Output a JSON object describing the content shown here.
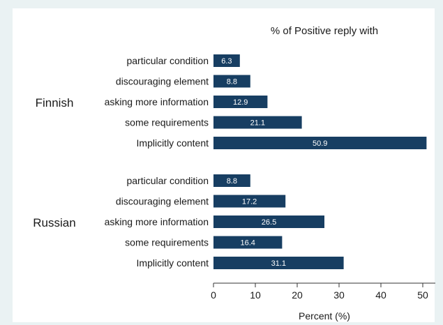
{
  "chart_data": {
    "type": "bar",
    "orientation": "horizontal",
    "title": "% of Positive reply with",
    "xlabel": "Percent (%)",
    "ylabel": "",
    "xlim": [
      0,
      53
    ],
    "xticks": [
      0,
      10,
      20,
      30,
      40,
      50
    ],
    "grid": false,
    "legend": "none",
    "bar_color": "#173e62",
    "value_label_color": "#ffffff",
    "groups": [
      {
        "name": "Finnish",
        "categories": [
          "particular condition",
          "discouraging element",
          "asking more information",
          "some requirements",
          "Implicitly content"
        ],
        "values": [
          6.3,
          8.8,
          12.9,
          21.1,
          50.9
        ],
        "labels": [
          "6.3",
          "8.8",
          "12.9",
          "21.1",
          "50.9"
        ]
      },
      {
        "name": "Russian",
        "categories": [
          "particular condition",
          "discouraging element",
          "asking more information",
          "some requirements",
          "Implicitly content"
        ],
        "values": [
          8.8,
          17.2,
          26.5,
          16.4,
          31.1
        ],
        "labels": [
          "8.8",
          "17.2",
          "26.5",
          "16.4",
          "31.1"
        ]
      }
    ]
  }
}
